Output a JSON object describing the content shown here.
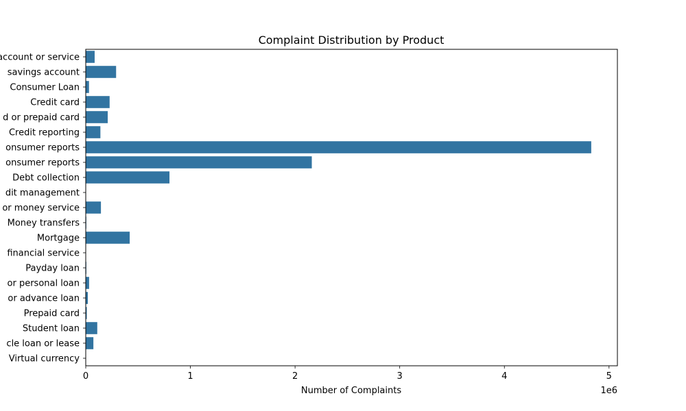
{
  "chart_data": {
    "type": "bar",
    "orientation": "horizontal",
    "title": "Complaint Distribution by Product",
    "xlabel": "Number of Complaints",
    "ylabel": "",
    "x_multiplier_label": "1e6",
    "xlim": [
      0,
      5080000
    ],
    "xticks": [
      0,
      1000000,
      2000000,
      3000000,
      4000000,
      5000000
    ],
    "xtick_labels": [
      "0",
      "1",
      "2",
      "3",
      "4",
      "5"
    ],
    "grid": false,
    "bar_color": "#3274a1",
    "categories": [
      "account or service",
      "savings account",
      "Consumer Loan",
      "Credit card",
      "d or prepaid card",
      "Credit reporting",
      "onsumer reports",
      "onsumer reports",
      "Debt collection",
      "dit management",
      "or money service",
      "Money transfers",
      "Mortgage",
      "financial service",
      "Payday loan",
      "or personal loan",
      "or advance loan",
      "Prepaid card",
      "Student loan",
      "cle loan or lease",
      "Virtual currency"
    ],
    "values": [
      85000,
      290000,
      31000,
      228000,
      210000,
      140000,
      4830000,
      2160000,
      800000,
      1500,
      145000,
      5300,
      420000,
      1000,
      5500,
      32000,
      20000,
      10000,
      110000,
      73000,
      18
    ]
  }
}
